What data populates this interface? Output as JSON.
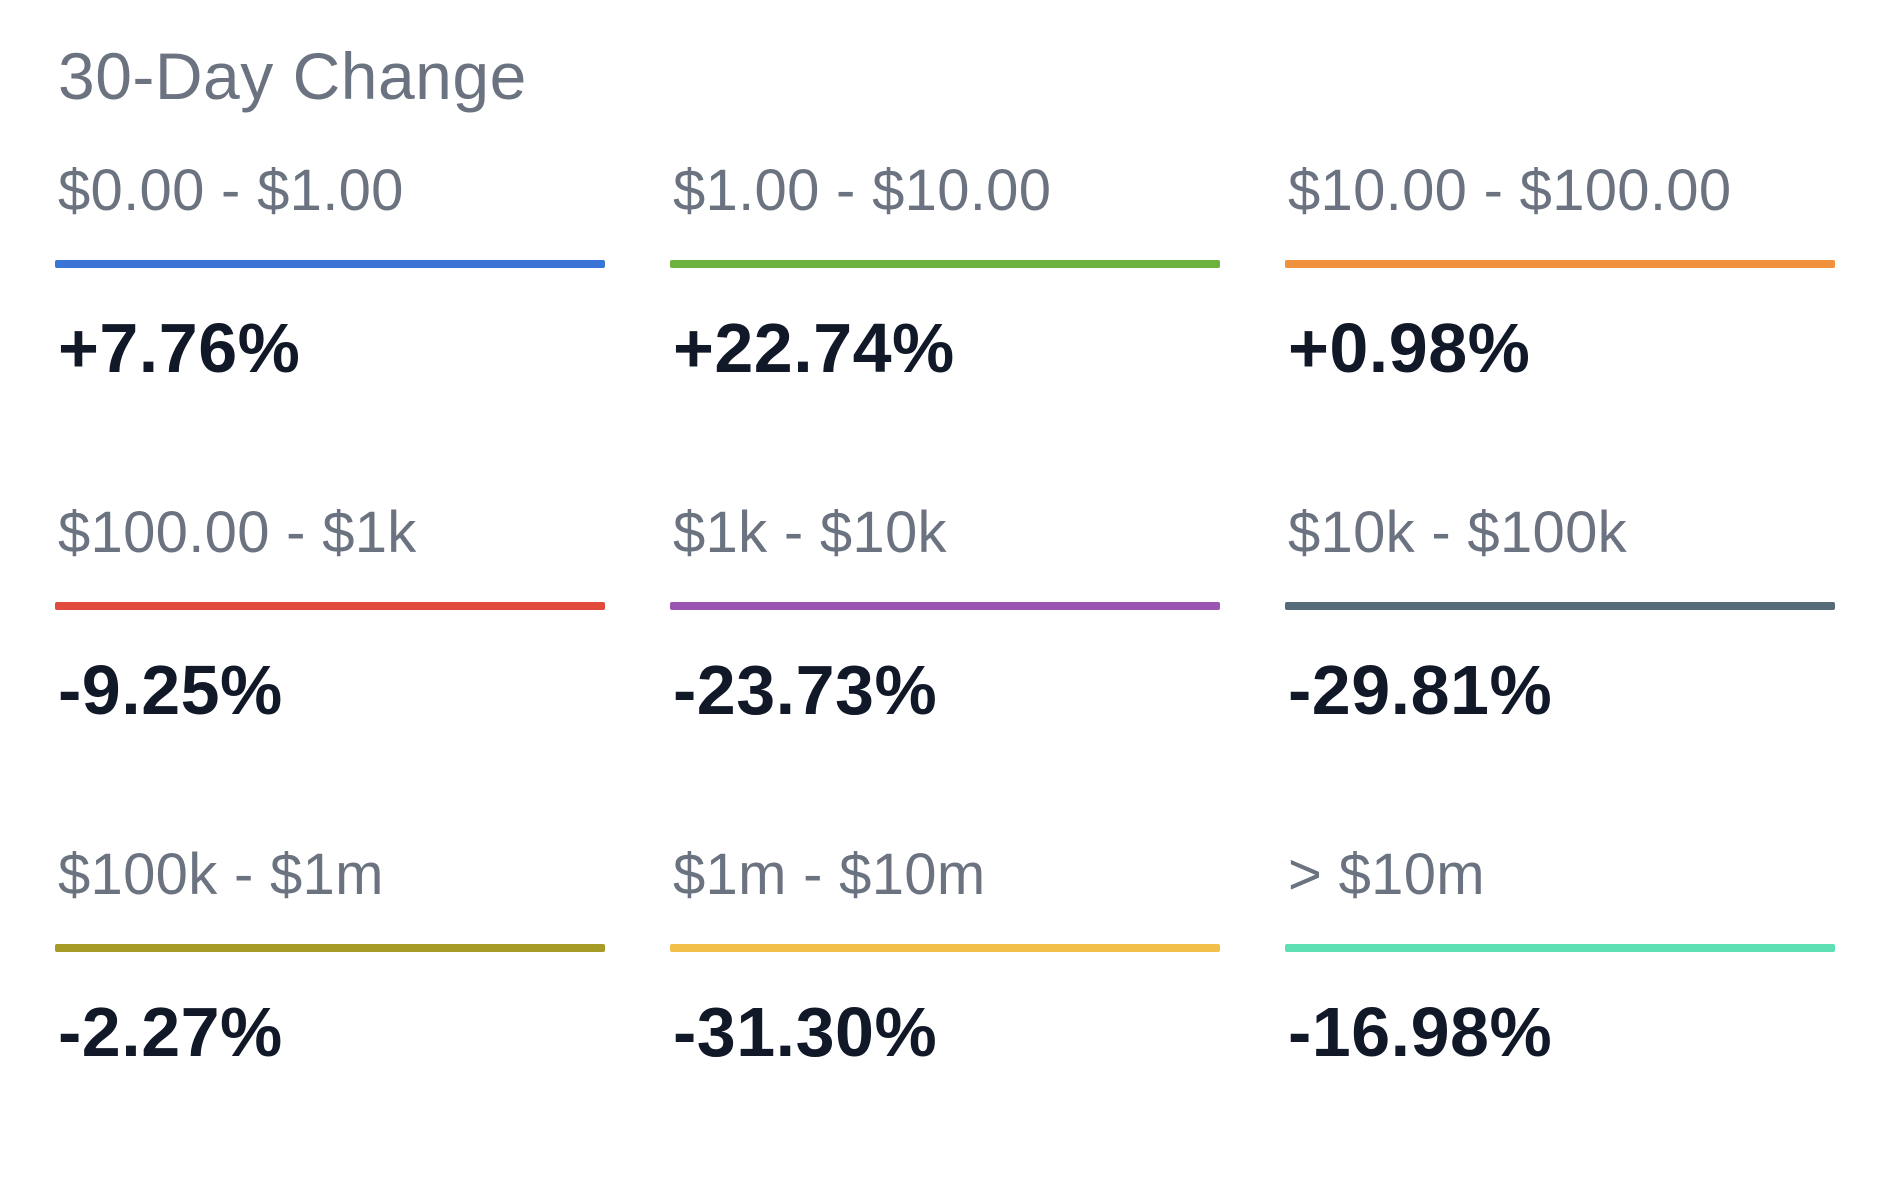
{
  "title": "30-Day Change",
  "buckets": [
    {
      "range": "$0.00 - $1.00",
      "change": "+7.76%",
      "color": "#3a74d6"
    },
    {
      "range": "$1.00 - $10.00",
      "change": "+22.74%",
      "color": "#6cb33e"
    },
    {
      "range": "$10.00 - $100.00",
      "change": "+0.98%",
      "color": "#f0913b"
    },
    {
      "range": "$100.00 - $1k",
      "change": "-9.25%",
      "color": "#e04b3c"
    },
    {
      "range": "$1k - $10k",
      "change": "-23.73%",
      "color": "#9a55b0"
    },
    {
      "range": "$10k - $100k",
      "change": "-29.81%",
      "color": "#566b78"
    },
    {
      "range": "$100k - $1m",
      "change": "-2.27%",
      "color": "#a59b26"
    },
    {
      "range": "$1m - $10m",
      "change": "-31.30%",
      "color": "#f2bf4a"
    },
    {
      "range": "> $10m",
      "change": "-16.98%",
      "color": "#5fe0b4"
    }
  ]
}
